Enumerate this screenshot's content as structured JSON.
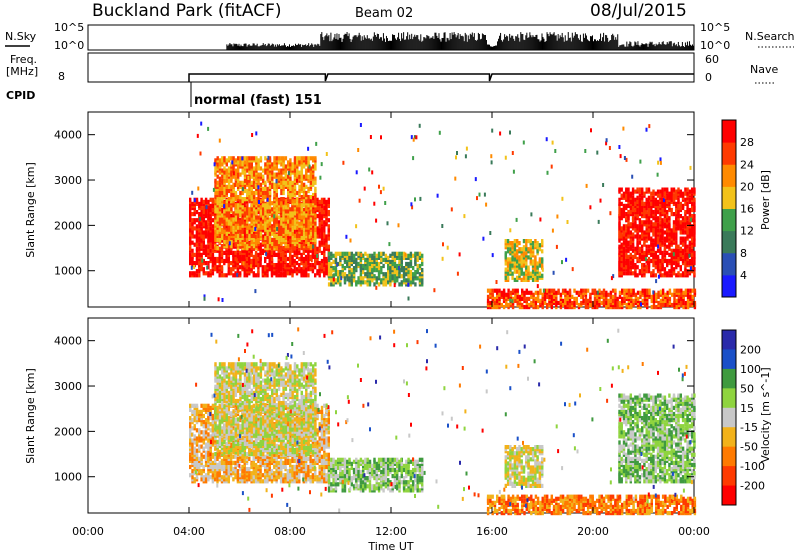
{
  "header": {
    "title": "Buckland Park (fitACF)",
    "beam": "Beam 02",
    "date": "08/Jul/2015"
  },
  "sky_panel": {
    "left_label": "N.Sky",
    "right_label": "N.Search",
    "tick_top": "10^5",
    "tick_bottom": "10^0"
  },
  "freq_panel": {
    "left_label_1": "Freq.",
    "left_label_2": "[MHz]",
    "left_tick": "8",
    "right_label": "Nave",
    "right_tick_top": "60",
    "right_tick_bottom": "0"
  },
  "cpid": {
    "label": "CPID",
    "program": "normal (fast) 151"
  },
  "colors": {
    "power_scale": [
      "#1a1aff",
      "#2a4fb5",
      "#3a7a5a",
      "#3fa04a",
      "#f2c21a",
      "#ff8a00",
      "#ff3a00",
      "#ff0000"
    ],
    "velocity_scale": [
      "#2a2aaa",
      "#1a50c8",
      "#3f9a3f",
      "#8fd43f",
      "#c8c8c8",
      "#f2b21a",
      "#ff7a00",
      "#ff3a00",
      "#ff0000"
    ]
  },
  "chart_data": [
    {
      "type": "heatmap",
      "name": "power-panel",
      "ylabel": "Slant Range [km]",
      "yticks": [
        "1000",
        "2000",
        "3000",
        "4000"
      ],
      "ylim": [
        200,
        4500
      ],
      "colorbar_label": "Power [dB]",
      "colorbar_ticks": [
        "4",
        "8",
        "12",
        "16",
        "20",
        "24",
        "28"
      ],
      "regions": [
        {
          "t0": 4.0,
          "t1": 9.5,
          "r0": 900,
          "r1": 2600,
          "level": 7
        },
        {
          "t0": 5.0,
          "t1": 9.0,
          "r0": 1500,
          "r1": 3500,
          "level": 5
        },
        {
          "t0": 9.5,
          "t1": 13.2,
          "r0": 700,
          "r1": 1400,
          "level": 3
        },
        {
          "t0": 15.8,
          "t1": 24.0,
          "r0": 200,
          "r1": 600,
          "level": 6
        },
        {
          "t0": 16.5,
          "t1": 18.0,
          "r0": 800,
          "r1": 1700,
          "level": 4
        },
        {
          "t0": 21.0,
          "t1": 24.0,
          "r0": 900,
          "r1": 2800,
          "level": 7
        }
      ]
    },
    {
      "type": "heatmap",
      "name": "velocity-panel",
      "ylabel": "Slant Range [km]",
      "yticks": [
        "1000",
        "2000",
        "3000",
        "4000"
      ],
      "ylim": [
        200,
        4500
      ],
      "colorbar_label": "Velocity [m s^-1]",
      "colorbar_ticks": [
        "200",
        "100",
        "50",
        "15",
        "-15",
        "-50",
        "-100",
        "-200"
      ],
      "regions": [
        {
          "t0": 4.0,
          "t1": 9.5,
          "r0": 900,
          "r1": 2600,
          "level": 5
        },
        {
          "t0": 5.0,
          "t1": 9.0,
          "r0": 1500,
          "r1": 3500,
          "level": 4
        },
        {
          "t0": 9.5,
          "t1": 13.2,
          "r0": 700,
          "r1": 1400,
          "level": 3
        },
        {
          "t0": 15.8,
          "t1": 24.0,
          "r0": 200,
          "r1": 600,
          "level": 6
        },
        {
          "t0": 16.5,
          "t1": 18.0,
          "r0": 800,
          "r1": 1700,
          "level": 4
        },
        {
          "t0": 21.0,
          "t1": 24.0,
          "r0": 900,
          "r1": 2800,
          "level": 3
        }
      ]
    }
  ],
  "x_axis": {
    "label": "Time UT",
    "ticks": [
      "00:00",
      "04:00",
      "08:00",
      "12:00",
      "16:00",
      "20:00",
      "00:00"
    ],
    "xlim": [
      0,
      24
    ]
  }
}
